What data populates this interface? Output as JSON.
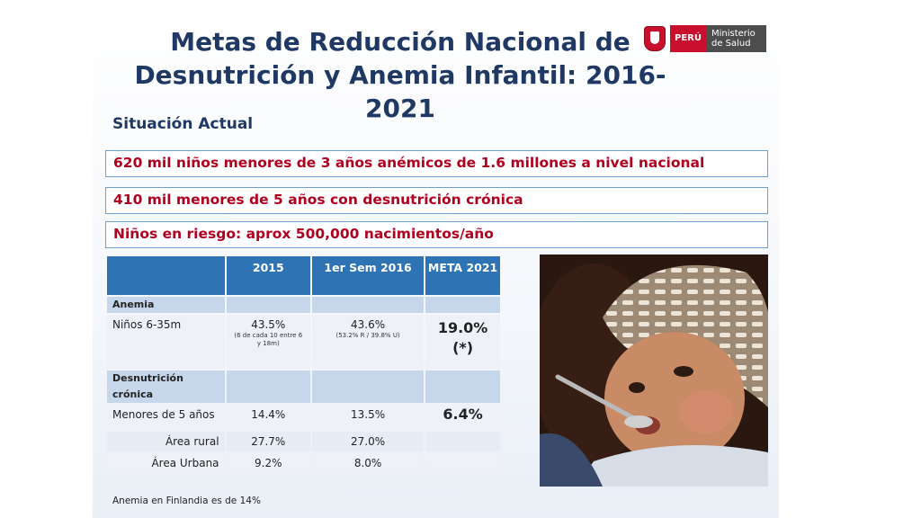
{
  "title_line1": "Metas de Reducción Nacional de",
  "title_line2": "Desnutrición y Anemia Infantil: 2016-2021",
  "logo": {
    "country": "PERÚ",
    "ministry_line1": "Ministerio",
    "ministry_line2": "de Salud"
  },
  "subtitle": "Situación Actual",
  "stats": [
    "620 mil niños menores de 3 años anémicos de 1.6 millones a nivel nacional",
    "410 mil menores de 5 años con desnutrición crónica",
    "Niños en riesgo:  aprox 500,000 nacimientos/año"
  ],
  "table": {
    "headers": [
      "",
      "2015",
      "1er Sem 2016",
      "META 2021"
    ],
    "section_anemia": "Anemia",
    "anemia_row": {
      "label": "Niños 6-35m",
      "v2015": "43.5%",
      "v2015_note": "(6 de cada 10 entre 6 y 18m)",
      "v2016": "43.6%",
      "v2016_note": "(53.2% R / 39.8% U)",
      "meta": "19.0%",
      "meta_note": "(*)"
    },
    "section_desnutricion": "Desnutrición crónica",
    "u5_row": {
      "label": "Menores de 5 años",
      "v2015": "14.4%",
      "v2016": "13.5%",
      "meta": "6.4%"
    },
    "rural_row": {
      "label": "Área rural",
      "v2015": "27.7%",
      "v2016": "27.0%"
    },
    "urban_row": {
      "label": "Área Urbana",
      "v2015": "9.2%",
      "v2016": "8.0%"
    }
  },
  "footnote": "Anemia en Finlandia es de 14%",
  "colors": {
    "title": "#1f3864",
    "stat_text": "#b00020",
    "table_header": "#2e74b5"
  }
}
